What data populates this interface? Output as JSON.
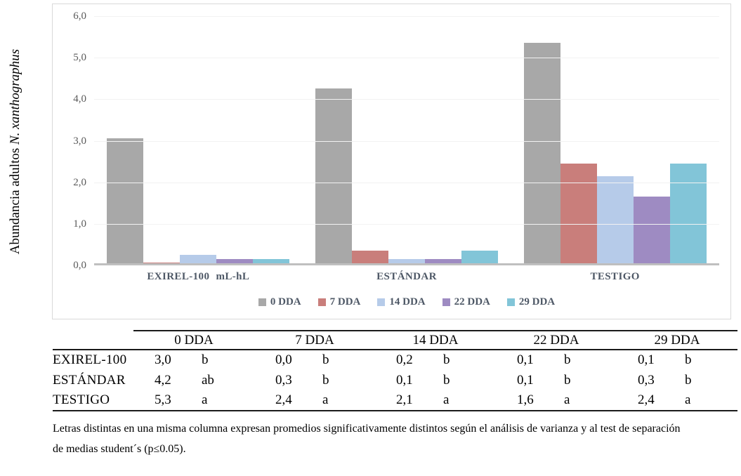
{
  "chart_data": {
    "type": "bar",
    "title": "",
    "ylabel_regular": "Abundancia adultos ",
    "ylabel_italic": "N. xanthographus",
    "xlabel": "",
    "ylim": [
      0,
      6
    ],
    "ytick_labels_top_to_bottom": [
      "6,0",
      "5,0",
      "4,0",
      "3,0",
      "2,0",
      "1,0",
      "0,0"
    ],
    "grid": true,
    "legend_position": "bottom",
    "categories": [
      "EXIREL-100 mL-hL",
      "ESTÁNDAR",
      "TESTIGO"
    ],
    "series": [
      {
        "name": "0 DDA",
        "color": "#a8a8a8",
        "values": [
          3.0,
          4.2,
          5.3
        ]
      },
      {
        "name": "7 DDA",
        "color": "#c97e7b",
        "values": [
          0.0,
          0.3,
          2.4
        ]
      },
      {
        "name": "14 DDA",
        "color": "#b6cbe9",
        "values": [
          0.2,
          0.1,
          2.1
        ]
      },
      {
        "name": "22 DDA",
        "color": "#9e8bc2",
        "values": [
          0.1,
          0.1,
          1.6
        ]
      },
      {
        "name": "29 DDA",
        "color": "#82c5d8",
        "values": [
          0.1,
          0.3,
          2.4
        ]
      }
    ],
    "grid_color": "#f2f2f2",
    "baseline_color": "#bfbfbf",
    "box_border_color": "#d9d9d9",
    "category_label_color": "#4e5866",
    "tick_label_color": "#595959"
  },
  "table": {
    "col_headers": [
      "0 DDA",
      "7 DDA",
      "14 DDA",
      "22 DDA",
      "29 DDA"
    ],
    "rows": [
      {
        "label": "EXIREL-100",
        "values": [
          "3,0",
          "0,0",
          "0,2",
          "0,1",
          "0,1"
        ],
        "letters": [
          "b",
          "b",
          "b",
          "b",
          "b"
        ]
      },
      {
        "label": "ESTÁNDAR",
        "values": [
          "4,2",
          "0,3",
          "0,1",
          "0,1",
          "0,3"
        ],
        "letters": [
          "ab",
          "b",
          "b",
          "b",
          "b"
        ]
      },
      {
        "label": "TESTIGO",
        "values": [
          "5,3",
          "2,4",
          "2,1",
          "1,6",
          "2,4"
        ],
        "letters": [
          "a",
          "a",
          "a",
          "a",
          "a"
        ]
      }
    ]
  },
  "footnote": {
    "full_text": "Letras distintas en una misma columna expresan promedios significativamente distintos según el análisis de varianza y al test de separación de medias student´s (p≤0.05).",
    "lines": [
      "Letras distintas en una misma columna expresan promedios significativamente distintos según el análisis de varianza y al test de separación",
      "de medias student´s (p≤0.05)."
    ]
  }
}
